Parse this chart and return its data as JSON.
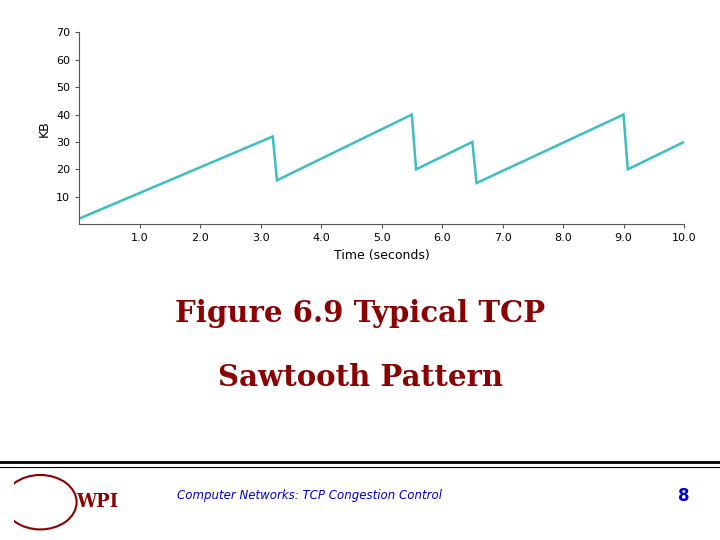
{
  "title_line1": "Figure 6.9 Typical TCP",
  "title_line2": "Sawtooth Pattern",
  "subtitle": "Computer Networks: TCP Congestion Control",
  "page_number": "8",
  "xlabel": "Time (seconds)",
  "ylabel": "KB",
  "xlim": [
    0,
    10.0
  ],
  "ylim": [
    0,
    70
  ],
  "xticks": [
    1.0,
    2.0,
    3.0,
    4.0,
    5.0,
    6.0,
    7.0,
    8.0,
    9.0,
    10.0
  ],
  "yticks": [
    10,
    20,
    30,
    40,
    50,
    60,
    70
  ],
  "line_color": "#3BBFC0",
  "line_width": 1.8,
  "background_color": "#ffffff",
  "title_color": "#8B0000",
  "subtitle_color": "#0000CC",
  "x": [
    0,
    3.2,
    3.27,
    5.5,
    5.57,
    6.5,
    6.57,
    9.0,
    9.07,
    10.0
  ],
  "y": [
    2,
    32,
    16,
    40,
    20,
    30,
    15,
    40,
    20,
    30
  ]
}
